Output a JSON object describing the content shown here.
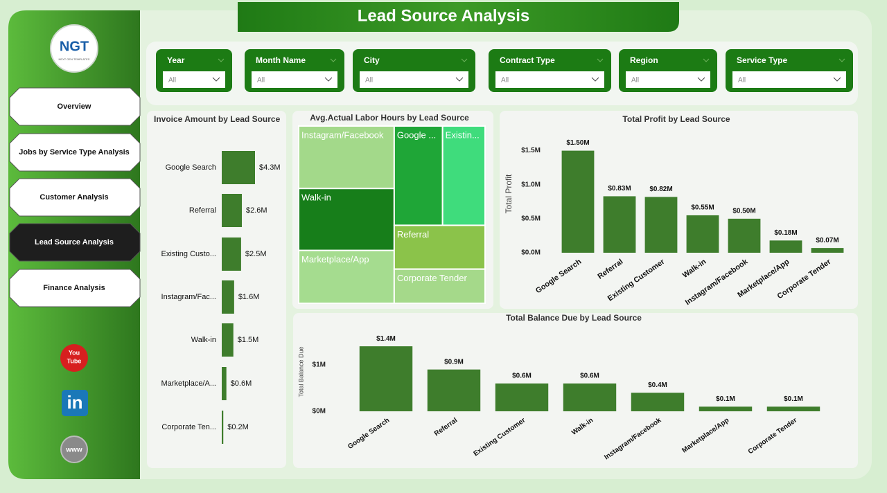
{
  "header": {
    "title": "Lead Source Analysis"
  },
  "logo": {
    "mark": "NGT",
    "tagline": "NEXT GEN TEMPLATES"
  },
  "nav": [
    "Overview",
    "Jobs by Service Type Analysis",
    "Customer Analysis",
    "Lead Source Analysis",
    "Finance Analysis"
  ],
  "nav_active": 3,
  "social": {
    "youtube": [
      "You",
      "Tube"
    ],
    "linkedin": "in",
    "web": "www"
  },
  "filters": [
    {
      "label": "Year",
      "value": "All"
    },
    {
      "label": "Month Name",
      "value": "All"
    },
    {
      "label": "City",
      "value": "All"
    },
    {
      "label": "Contract Type",
      "value": "All"
    },
    {
      "label": "Region",
      "value": "All"
    },
    {
      "label": "Service Type",
      "value": "All"
    }
  ],
  "chart_data": [
    {
      "type": "hbar",
      "title": "Invoice Amount by Lead Source",
      "categories": [
        "Google Search",
        "Referral",
        "Existing Custo...",
        "Instagram/Fac...",
        "Walk-in",
        "Marketplace/A...",
        "Corporate Ten..."
      ],
      "values": [
        4.3,
        2.6,
        2.5,
        1.6,
        1.5,
        0.6,
        0.2
      ],
      "value_labels": [
        "$4.3M",
        "$2.6M",
        "$2.5M",
        "$1.6M",
        "$1.5M",
        "$0.6M",
        "$0.2M"
      ],
      "color": "#3e7d2c"
    },
    {
      "type": "treemap",
      "title": "Avg.Actual Labor Hours by Lead Source",
      "categories": [
        "Instagram/Facebook",
        "Walk-in",
        "Marketplace/App",
        "Google ...",
        "Existin...",
        "Referral",
        "Corporate Tender"
      ],
      "values": [
        12.3,
        12.2,
        10.4,
        9.9,
        8.7,
        8.2,
        6.4
      ],
      "colors": [
        "#a3d98a",
        "#177e1a",
        "#a5dc8f",
        "#1fa637",
        "#3fdc7c",
        "#8bc34a",
        "#a5d98a"
      ]
    },
    {
      "type": "bar",
      "title": "Total Profit by Lead Source",
      "y_label": "Total Profit",
      "categories": [
        "Google Search",
        "Referral",
        "Existing Customer",
        "Walk-in",
        "Instagram/Facebook",
        "Marketplace/App",
        "Corporate Tender"
      ],
      "values": [
        1.5,
        0.83,
        0.82,
        0.55,
        0.5,
        0.18,
        0.07
      ],
      "value_labels": [
        "$1.50M",
        "$0.83M",
        "$0.82M",
        "$0.55M",
        "$0.50M",
        "$0.18M",
        "$0.07M"
      ],
      "ylim": [
        0,
        1.73
      ],
      "yticks": [
        {
          "value": 0,
          "label": "$0.0M"
        },
        {
          "value": 0.5,
          "label": "$0.5M"
        },
        {
          "value": 1,
          "label": "$1.0M"
        },
        {
          "value": 1.5,
          "label": "$1.5M"
        }
      ],
      "color": "#3e7d2c"
    },
    {
      "type": "bar",
      "title": "Total Balance Due by Lead Source",
      "y_label": "Total Balance Due",
      "categories": [
        "Google Search",
        "Referral",
        "Existing Customer",
        "Walk-in",
        "Instagram/Facebook",
        "Marketplace/App",
        "Corporate Tender"
      ],
      "values": [
        1.4,
        0.9,
        0.6,
        0.6,
        0.4,
        0.1,
        0.1
      ],
      "value_labels": [
        "$1.4M",
        "$0.9M",
        "$0.6M",
        "$0.6M",
        "$0.4M",
        "$0.1M",
        "$0.1M"
      ],
      "ylim": [
        0,
        1.7
      ],
      "yticks": [
        {
          "value": 0,
          "label": "$0M"
        },
        {
          "value": 1,
          "label": "$1M"
        }
      ],
      "color": "#3e7d2c"
    }
  ]
}
